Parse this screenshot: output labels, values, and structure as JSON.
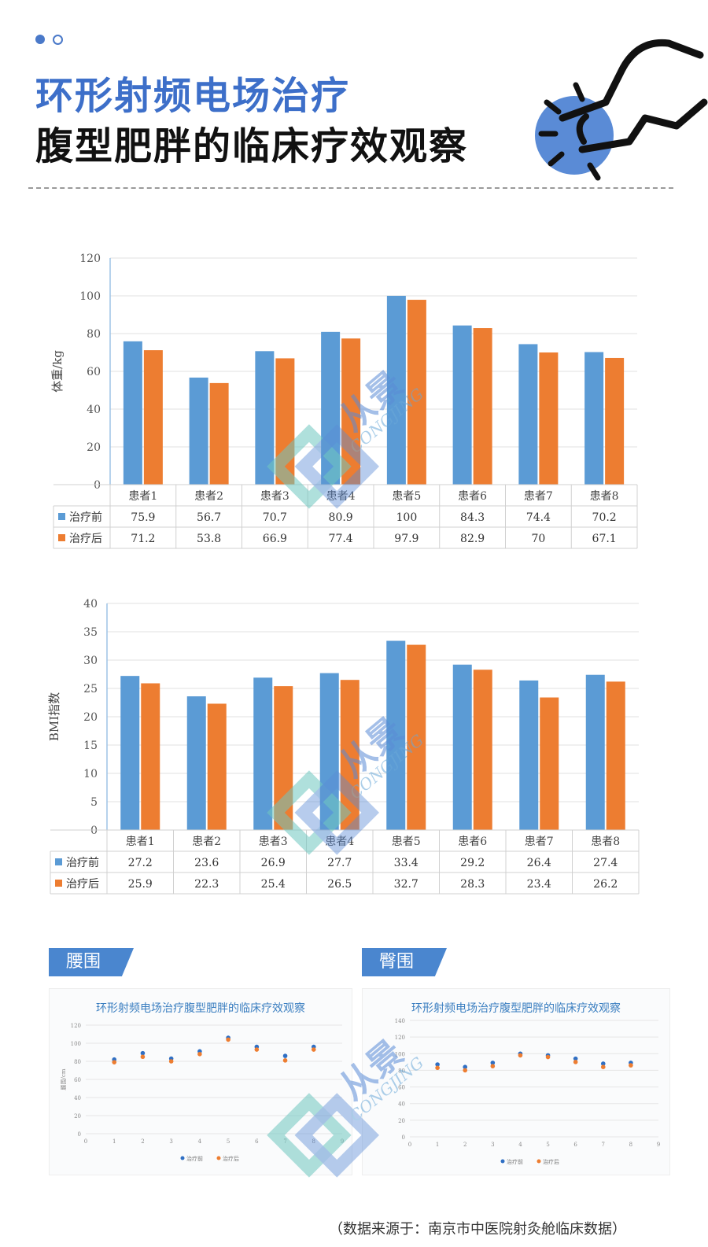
{
  "header": {
    "title_line1": "环形射频电场治疗",
    "title_line2": "腹型肥胖的临床疗效观察"
  },
  "colors": {
    "before": "#5b9bd5",
    "after": "#ed7d31",
    "accent": "#3d6fc9"
  },
  "chart_data": [
    {
      "type": "bar",
      "ylabel": "体重/kg",
      "ylim": [
        0,
        120
      ],
      "yticks": [
        0,
        20,
        40,
        60,
        80,
        100,
        120
      ],
      "categories": [
        "患者1",
        "患者2",
        "患者3",
        "患者4",
        "患者5",
        "患者6",
        "患者7",
        "患者8"
      ],
      "series": [
        {
          "name": "治疗前",
          "values": [
            75.9,
            56.7,
            70.7,
            80.9,
            100,
            84.3,
            74.4,
            70.2
          ]
        },
        {
          "name": "治疗后",
          "values": [
            71.2,
            53.8,
            66.9,
            77.4,
            97.9,
            82.9,
            70,
            67.1
          ]
        }
      ],
      "table_labels": [
        [
          "75.9",
          "56.7",
          "70.7",
          "80.9",
          "100",
          "84.3",
          "74.4",
          "70.2"
        ],
        [
          "71.2",
          "53.8",
          "66.9",
          "77.4",
          "97.9",
          "82.9",
          "70",
          "67.1"
        ]
      ]
    },
    {
      "type": "bar",
      "ylabel": "BMI指数",
      "ylim": [
        0,
        40
      ],
      "yticks": [
        0,
        5,
        10,
        15,
        20,
        25,
        30,
        35,
        40
      ],
      "categories": [
        "患者1",
        "患者2",
        "患者3",
        "患者4",
        "患者5",
        "患者6",
        "患者7",
        "患者8"
      ],
      "series": [
        {
          "name": "治疗前",
          "values": [
            27.2,
            23.6,
            26.9,
            27.7,
            33.4,
            29.2,
            26.4,
            27.4
          ]
        },
        {
          "name": "治疗后",
          "values": [
            25.9,
            22.3,
            25.4,
            26.5,
            32.7,
            28.3,
            23.4,
            26.2
          ]
        }
      ],
      "table_labels": [
        [
          "27.2",
          "23.6",
          "26.9",
          "27.7",
          "33.4",
          "29.2",
          "26.4",
          "27.4"
        ],
        [
          "25.9",
          "22.3",
          "25.4",
          "26.5",
          "32.7",
          "28.3",
          "23.4",
          "26.2"
        ]
      ]
    },
    {
      "type": "scatter",
      "title": "环形射频电场治疗腹型肥胖的临床疗效观察",
      "ylabel": "腰围/cm",
      "xlim": [
        0,
        9
      ],
      "ylim": [
        0,
        120
      ],
      "xticks": [
        0,
        1,
        2,
        3,
        4,
        5,
        6,
        7,
        8,
        9
      ],
      "yticks": [
        0,
        20,
        40,
        60,
        80,
        100,
        120
      ],
      "x": [
        1,
        2,
        3,
        4,
        5,
        6,
        7,
        8
      ],
      "series": [
        {
          "name": "治疗前",
          "values": [
            82,
            89,
            83,
            91,
            106,
            96,
            86,
            96
          ]
        },
        {
          "name": "治疗后",
          "values": [
            79,
            85,
            80,
            88,
            104,
            93,
            81,
            93
          ]
        }
      ]
    },
    {
      "type": "scatter",
      "title": "环形射频电场治疗腹型肥胖的临床疗效观察",
      "xlim": [
        0,
        9
      ],
      "ylim": [
        0,
        140
      ],
      "xticks": [
        0,
        1,
        2,
        3,
        4,
        5,
        6,
        7,
        8,
        9
      ],
      "yticks": [
        0,
        20,
        40,
        60,
        80,
        100,
        120,
        140
      ],
      "x": [
        1,
        2,
        3,
        4,
        5,
        6,
        7,
        8
      ],
      "series": [
        {
          "name": "治疗前",
          "values": [
            87,
            84,
            89,
            100,
            98,
            94,
            88,
            89
          ]
        },
        {
          "name": "治疗后",
          "values": [
            83,
            80,
            85,
            98,
            96,
            90,
            84,
            86
          ]
        }
      ]
    }
  ],
  "tabs": {
    "waist": "腰围",
    "hip": "臀围"
  },
  "source_note": "（数据来源于：南京市中医院射灸舱临床数据）",
  "watermark": {
    "brand": "从景",
    "latin": "CONGJING"
  }
}
